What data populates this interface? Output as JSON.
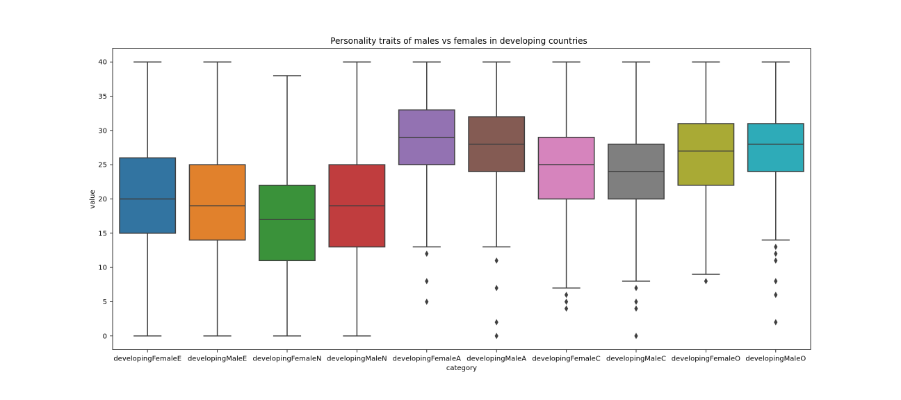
{
  "chart_data": {
    "type": "box",
    "title": "Personality traits of males vs females in developing countries",
    "xlabel": "category",
    "ylabel": "value",
    "ylim": [
      -2,
      42
    ],
    "yticks": [
      0,
      5,
      10,
      15,
      20,
      25,
      30,
      35,
      40
    ],
    "grid": false,
    "categories": [
      "developingFemaleE",
      "developingMaleE",
      "developingFemaleN",
      "developingMaleN",
      "developingFemaleA",
      "developingMaleA",
      "developingFemaleC",
      "developingMaleC",
      "developingFemaleO",
      "developingMaleO"
    ],
    "boxes": [
      {
        "category": "developingFemaleE",
        "whisker_low": 0,
        "q1": 15,
        "median": 20,
        "q3": 26,
        "whisker_high": 40,
        "outliers": [],
        "color": "#3274a1"
      },
      {
        "category": "developingMaleE",
        "whisker_low": 0,
        "q1": 14,
        "median": 19,
        "q3": 25,
        "whisker_high": 40,
        "outliers": [],
        "color": "#e1812c"
      },
      {
        "category": "developingFemaleN",
        "whisker_low": 0,
        "q1": 11,
        "median": 17,
        "q3": 22,
        "whisker_high": 38,
        "outliers": [],
        "color": "#3a923a"
      },
      {
        "category": "developingMaleN",
        "whisker_low": 0,
        "q1": 13,
        "median": 19,
        "q3": 25,
        "whisker_high": 40,
        "outliers": [],
        "color": "#c03d3e"
      },
      {
        "category": "developingFemaleA",
        "whisker_low": 13,
        "q1": 25,
        "median": 29,
        "q3": 33,
        "whisker_high": 40,
        "outliers": [
          12,
          8,
          5
        ],
        "color": "#9372b2"
      },
      {
        "category": "developingMaleA",
        "whisker_low": 13,
        "q1": 24,
        "median": 28,
        "q3": 32,
        "whisker_high": 40,
        "outliers": [
          11,
          7,
          2,
          0
        ],
        "color": "#845b53"
      },
      {
        "category": "developingFemaleC",
        "whisker_low": 7,
        "q1": 20,
        "median": 25,
        "q3": 29,
        "whisker_high": 40,
        "outliers": [
          6,
          5,
          4
        ],
        "color": "#d684bd"
      },
      {
        "category": "developingMaleC",
        "whisker_low": 8,
        "q1": 20,
        "median": 24,
        "q3": 28,
        "whisker_high": 40,
        "outliers": [
          7,
          5,
          4,
          0
        ],
        "color": "#7f7f7f"
      },
      {
        "category": "developingFemaleO",
        "whisker_low": 9,
        "q1": 22,
        "median": 27,
        "q3": 31,
        "whisker_high": 40,
        "outliers": [
          8
        ],
        "color": "#a9aa35"
      },
      {
        "category": "developingMaleO",
        "whisker_low": 14,
        "q1": 24,
        "median": 28,
        "q3": 31,
        "whisker_high": 40,
        "outliers": [
          13,
          12,
          11,
          8,
          6,
          2
        ],
        "color": "#2eabb8"
      }
    ]
  }
}
